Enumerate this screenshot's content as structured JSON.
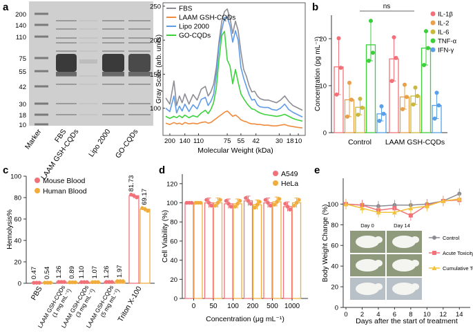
{
  "colors": {
    "red": "#f07278",
    "orange": "#e8a04a",
    "yellow": "#c9b83a",
    "green": "#3ccf3c",
    "blue": "#5aa0e6",
    "gray": "#8c8c94",
    "laam": "#f08a3c",
    "lipo": "#5f9be8",
    "go": "#3cd23c",
    "hum": "#f0ad3c"
  },
  "panels": {
    "a": {
      "letter": "a",
      "gel": {
        "mw_markers": [
          "200",
          "140",
          "110",
          "75",
          "55",
          "42",
          "30",
          "18",
          "10"
        ],
        "lanes": [
          "Marker",
          "FBS",
          "LAAM GSH-CQDs",
          "Lipo 2000",
          "GO-CQDs"
        ]
      },
      "chart_data": {
        "type": "line",
        "title": "",
        "xlabel": "Molecular Weight (kDa)",
        "ylabel": "Gray Scale (arb. units)",
        "xticks": [
          "200",
          "140",
          "110",
          "75",
          "55",
          "42",
          "30",
          "18",
          "10"
        ],
        "legend": [
          "FBS",
          "LAAM GSH-CQDs",
          "Lipo 2000",
          "GO-CQDs"
        ],
        "yticks": [
          100,
          150,
          200,
          250
        ],
        "ylim": [
          60,
          255
        ],
        "x": [
          0,
          0.03,
          0.06,
          0.08,
          0.1,
          0.12,
          0.14,
          0.17,
          0.2,
          0.23,
          0.26,
          0.29,
          0.31,
          0.33,
          0.35,
          0.37,
          0.39,
          0.41,
          0.43,
          0.45,
          0.47,
          0.49,
          0.51,
          0.53,
          0.55,
          0.57,
          0.59,
          0.61,
          0.63,
          0.65,
          0.67,
          0.69,
          0.72,
          0.75,
          0.78,
          0.81,
          0.84,
          0.87,
          0.9,
          0.93,
          0.96,
          1.0
        ],
        "series": [
          {
            "name": "FBS",
            "values": [
              115,
              106,
              140,
              104,
              118,
              108,
              121,
              106,
              120,
              112,
              128,
              132,
              118,
              124,
              135,
              160,
              198,
              228,
              242,
              246,
              232,
              210,
              228,
              214,
              183,
              157,
              147,
              133,
              124,
              125,
              118,
              114,
              112,
              112,
              110,
              108,
              112,
              118,
              110,
              104,
              101,
              97
            ]
          },
          {
            "name": "LAAM GSH-CQDs",
            "values": [
              78,
              76,
              79,
              77,
              78,
              76,
              79,
              77,
              78,
              77,
              79,
              80,
              78,
              79,
              82,
              85,
              88,
              91,
              94,
              96,
              92,
              88,
              90,
              87,
              83,
              81,
              80,
              78,
              77,
              77,
              76,
              76,
              75,
              75,
              74,
              74,
              75,
              76,
              74,
              73,
              72,
              71
            ]
          },
          {
            "name": "Lipo 2000",
            "values": [
              100,
              95,
              118,
              93,
              103,
              96,
              106,
              95,
              105,
              99,
              113,
              116,
              104,
              110,
              120,
              150,
              192,
              215,
              233,
              234,
              221,
              197,
              214,
              200,
              160,
              144,
              132,
              120,
              112,
              113,
              105,
              102,
              101,
              101,
              98,
              97,
              100,
              106,
              98,
              94,
              91,
              87
            ]
          },
          {
            "name": "GO-CQDs",
            "values": [
              88,
              85,
              88,
              86,
              89,
              86,
              90,
              86,
              89,
              87,
              93,
              97,
              92,
              98,
              108,
              130,
              172,
              207,
              213,
              171,
              162,
              136,
              157,
              138,
              121,
              114,
              108,
              103,
              99,
              98,
              95,
              93,
              91,
              90,
              89,
              88,
              89,
              91,
              88,
              85,
              83,
              81
            ]
          }
        ]
      }
    },
    "b": {
      "letter": "b",
      "chart_data": {
        "type": "bar",
        "title": "",
        "xlabel": "",
        "ylabel": "Concentration (pg mL⁻¹)",
        "categories": [
          "Control",
          "LAAM GSH-CQDs"
        ],
        "ylim": [
          0,
          25
        ],
        "yticks": [
          0,
          10,
          20
        ],
        "significance": "ns",
        "series": [
          {
            "name": "IL-1β",
            "values": [
              14.0,
              15.7
            ],
            "points": [
              [
                20.1,
                13.8,
                8.1
              ],
              [
                20.3,
                15.9,
                11.0
              ]
            ]
          },
          {
            "name": "IL-2",
            "values": [
              7.0,
              7.6
            ],
            "points": [
              [
                10.6,
                7.0,
                3.4
              ],
              [
                10.2,
                7.6,
                5.0
              ]
            ]
          },
          {
            "name": "IL-6",
            "values": [
              5.4,
              7.8
            ],
            "points": [
              [
                7.2,
                5.3,
                3.8
              ],
              [
                9.6,
                7.8,
                6.0
              ]
            ]
          },
          {
            "name": "TNF-α",
            "values": [
              18.7,
              18.0
            ],
            "points": [
              [
                23.8,
                17.0,
                15.3
              ],
              [
                21.6,
                18.0,
                14.4
              ]
            ]
          },
          {
            "name": "IFN-γ",
            "values": [
              4.0,
              5.8
            ],
            "points": [
              [
                5.6,
                4.0,
                2.5
              ],
              [
                8.5,
                5.8,
                3.0
              ]
            ]
          }
        ]
      }
    },
    "c": {
      "letter": "c",
      "chart_data": {
        "type": "bar",
        "title": "",
        "xlabel": "",
        "ylabel": "Hemolysis%",
        "categories": [
          "PBS",
          "LAAM GSH-CQDs\n(1 mg mL⁻¹)",
          "LAAM GSH-CQDs\n(3 mg mL⁻¹)",
          "LAAM GSH-CQDs\n(5 mg mL⁻¹)",
          "Triton X-100"
        ],
        "ylim": [
          0,
          100
        ],
        "yticks": [
          0,
          20,
          40,
          60,
          80,
          100
        ],
        "series": [
          {
            "name": "Mouse Blood",
            "values": [
              0.47,
              1.26,
              1.1,
              1.26,
              81.73
            ],
            "labels": [
              "0.47",
              "1.26",
              "1.10",
              "1.26",
              "81.73"
            ]
          },
          {
            "name": "Human Blood",
            "values": [
              0.54,
              0.89,
              1.07,
              1.97,
              69.17
            ],
            "labels": [
              "0.54",
              "0.89",
              "1.07",
              "1.97",
              "69.17"
            ]
          }
        ]
      }
    },
    "d": {
      "letter": "d",
      "chart_data": {
        "type": "bar",
        "title": "",
        "xlabel": "Concentration (μg mL⁻¹)",
        "ylabel": "Cell Viability (%)",
        "categories": [
          "0",
          "50",
          "100",
          "200",
          "500",
          "1000"
        ],
        "ylim": [
          0,
          130
        ],
        "yticks": [
          0,
          20,
          40,
          60,
          80,
          100,
          120
        ],
        "series": [
          {
            "name": "A549",
            "values": [
              100,
              100,
              99,
              102,
              100,
              96
            ]
          },
          {
            "name": "HeLa",
            "values": [
              100,
              100,
              99,
              98,
              101,
              100
            ]
          }
        ]
      }
    },
    "e": {
      "letter": "e",
      "chart_data": {
        "type": "line",
        "title": "",
        "xlabel": "Days after the start of treatment",
        "ylabel": "Body Weight Change (%)",
        "x": [
          0,
          2,
          4,
          6,
          8,
          10,
          12,
          14
        ],
        "xlim": [
          0,
          15
        ],
        "ylim": [
          0,
          125
        ],
        "xticks": [
          0,
          2,
          4,
          6,
          8,
          10,
          12,
          14
        ],
        "yticks": [
          0,
          20,
          40,
          60,
          80,
          100
        ],
        "series": [
          {
            "name": "Control",
            "values": [
              100,
              99,
              98,
              99,
              99,
              100,
              103,
              110
            ]
          },
          {
            "name": "Acute Toxicity",
            "values": [
              100,
              99,
              94,
              96,
              89,
              99,
              103,
              104
            ]
          },
          {
            "name": "Cumulative Toxicity",
            "values": [
              100,
              96,
              92,
              92,
              96,
              98,
              103,
              105
            ]
          }
        ],
        "inset": {
          "day0_label": "Day 0",
          "day14_label": "Day 14"
        }
      }
    }
  }
}
